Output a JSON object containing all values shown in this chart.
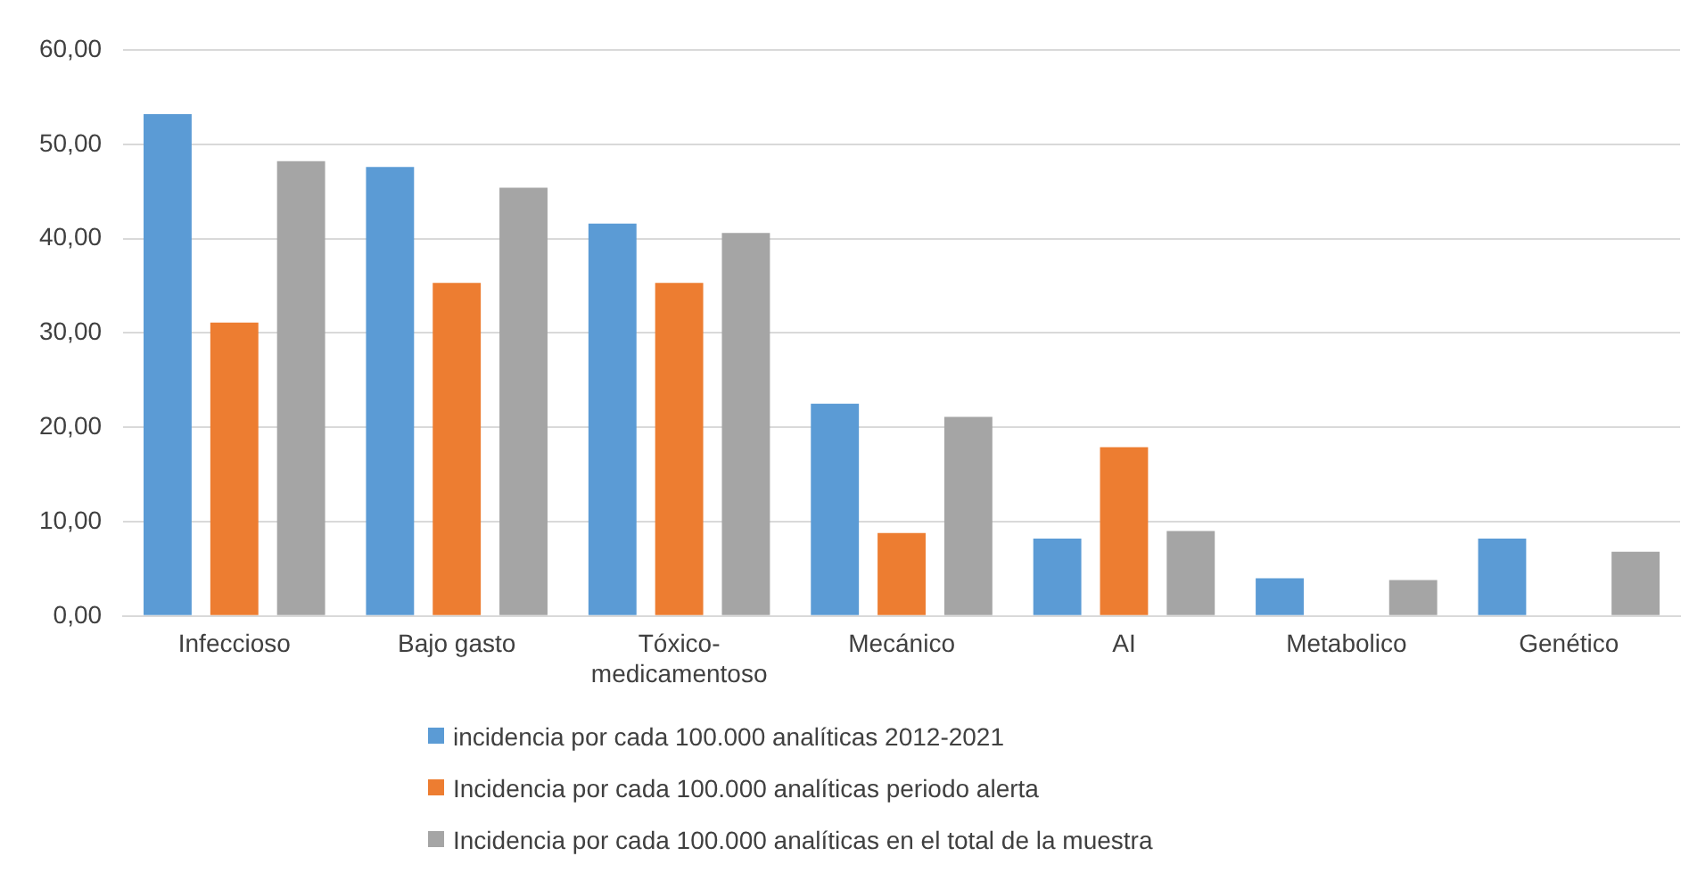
{
  "chart_data": {
    "type": "bar",
    "categories": [
      "Infeccioso",
      "Bajo gasto",
      "Tóxico-medicamentoso",
      "Mecánico",
      "AI",
      "Metabolico",
      "Genético"
    ],
    "series": [
      {
        "name": "incidencia por cada 100.000 analíticas 2012-2021",
        "color": "#5b9bd5",
        "values": [
          53.2,
          47.6,
          41.6,
          22.5,
          8.2,
          4.0,
          8.2
        ]
      },
      {
        "name": "Incidencia por cada 100.000 analíticas periodo alerta",
        "color": "#ed7d31",
        "values": [
          31.1,
          35.3,
          35.3,
          8.8,
          17.9,
          null,
          null
        ]
      },
      {
        "name": "Incidencia por cada 100.000 analíticas en el total de la muestra",
        "color": "#a5a5a5",
        "values": [
          48.2,
          45.4,
          40.6,
          21.1,
          9.0,
          3.8,
          6.8
        ]
      }
    ],
    "ylim": [
      0,
      60
    ],
    "yticks": [
      {
        "value": 0,
        "label": "0,00"
      },
      {
        "value": 10,
        "label": "10,00"
      },
      {
        "value": 20,
        "label": "20,00"
      },
      {
        "value": 30,
        "label": "30,00"
      },
      {
        "value": 40,
        "label": "40,00"
      },
      {
        "value": 50,
        "label": "50,00"
      },
      {
        "value": 60,
        "label": "60,00"
      }
    ],
    "grid": "y",
    "legend": "bottom"
  }
}
